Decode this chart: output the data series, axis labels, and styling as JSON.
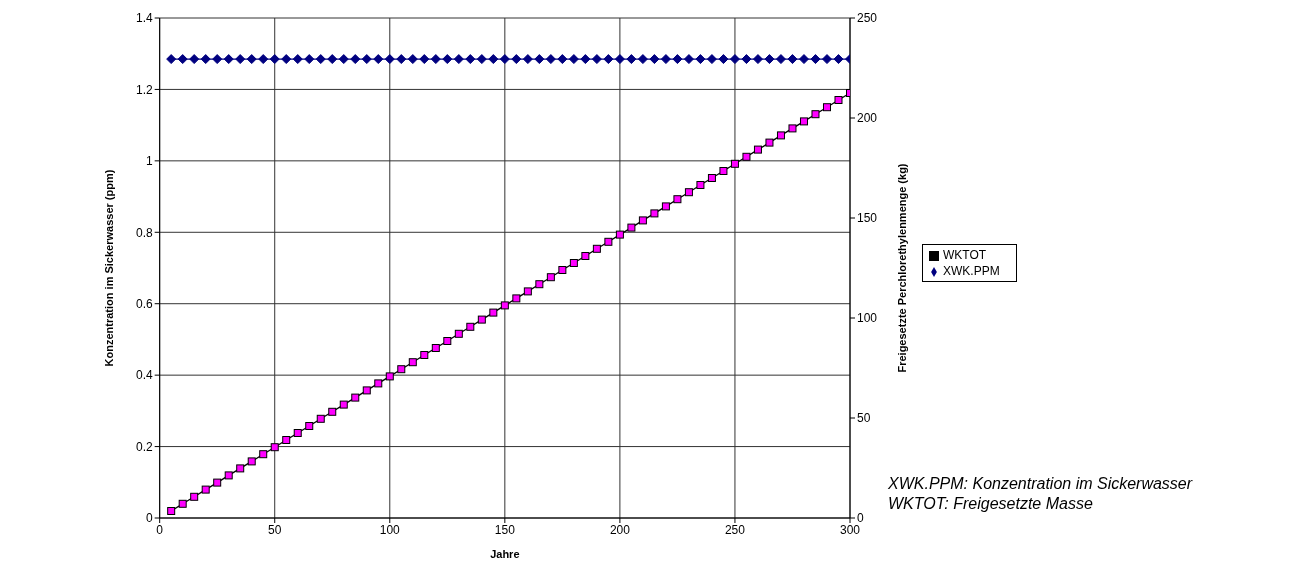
{
  "chart_data": {
    "type": "line",
    "xlabel": "Jahre",
    "ylabel": "Konzentration im Sickerwasser  (ppm)",
    "y2label": "Freigesetzte Perchlorethylenmenge  (kg)",
    "annotations": [
      "XWK.PPM: Konzentration im Sickerwasser",
      "WKTOT: Freigesetzte Masse"
    ],
    "x": [
      5,
      10,
      15,
      20,
      25,
      30,
      35,
      40,
      45,
      50,
      55,
      60,
      65,
      70,
      75,
      80,
      85,
      90,
      95,
      100,
      105,
      110,
      115,
      120,
      125,
      130,
      135,
      140,
      145,
      150,
      155,
      160,
      165,
      170,
      175,
      180,
      185,
      190,
      195,
      200,
      205,
      210,
      215,
      220,
      225,
      230,
      235,
      240,
      245,
      250,
      255,
      260,
      265,
      270,
      275,
      280,
      285,
      290,
      295,
      300
    ],
    "series": [
      {
        "name": "XWK.PPM",
        "color": "#000080",
        "marker": "diamond",
        "values": [
          1.285,
          1.285,
          1.285,
          1.285,
          1.285,
          1.285,
          1.285,
          1.285,
          1.285,
          1.285,
          1.285,
          1.285,
          1.285,
          1.285,
          1.285,
          1.285,
          1.285,
          1.285,
          1.285,
          1.285,
          1.285,
          1.285,
          1.285,
          1.285,
          1.285,
          1.285,
          1.285,
          1.285,
          1.285,
          1.285,
          1.285,
          1.285,
          1.285,
          1.285,
          1.285,
          1.285,
          1.285,
          1.285,
          1.285,
          1.285,
          1.285,
          1.285,
          1.285,
          1.285,
          1.285,
          1.285,
          1.285,
          1.285,
          1.285,
          1.285,
          1.285,
          1.285,
          1.285,
          1.285,
          1.285,
          1.285,
          1.285,
          1.285,
          1.285,
          1.285
        ]
      },
      {
        "name": "WKTOT",
        "color": "#ff00ff",
        "marker": "square",
        "axis": "y2",
        "values": [
          3.5,
          7.1,
          10.6,
          14.2,
          17.7,
          21.3,
          24.8,
          28.3,
          31.9,
          35.4,
          39.0,
          42.5,
          46.0,
          49.6,
          53.1,
          56.7,
          60.2,
          63.8,
          67.3,
          70.8,
          74.4,
          77.9,
          81.5,
          85.0,
          88.5,
          92.1,
          95.6,
          99.2,
          102.7,
          106.3,
          109.8,
          113.3,
          116.9,
          120.4,
          124.0,
          127.5,
          131.0,
          134.6,
          138.1,
          141.7,
          145.2,
          148.8,
          152.3,
          155.8,
          159.4,
          162.9,
          166.5,
          170.0,
          173.5,
          177.1,
          180.6,
          184.2,
          187.7,
          191.3,
          194.8,
          198.3,
          201.9,
          205.4,
          209.0,
          212.5
        ]
      }
    ],
    "xlim": [
      0,
      300
    ],
    "xticks": [
      0,
      50,
      100,
      150,
      200,
      250,
      300
    ],
    "ylim": [
      0,
      1.4
    ],
    "yticks": [
      0,
      0.2,
      0.4,
      0.6,
      0.8,
      1,
      1.2,
      1.4
    ],
    "y2lim": [
      0,
      250
    ],
    "y2ticks": [
      0,
      50,
      100,
      150,
      200,
      250
    ],
    "grid": true,
    "legend": "right"
  }
}
